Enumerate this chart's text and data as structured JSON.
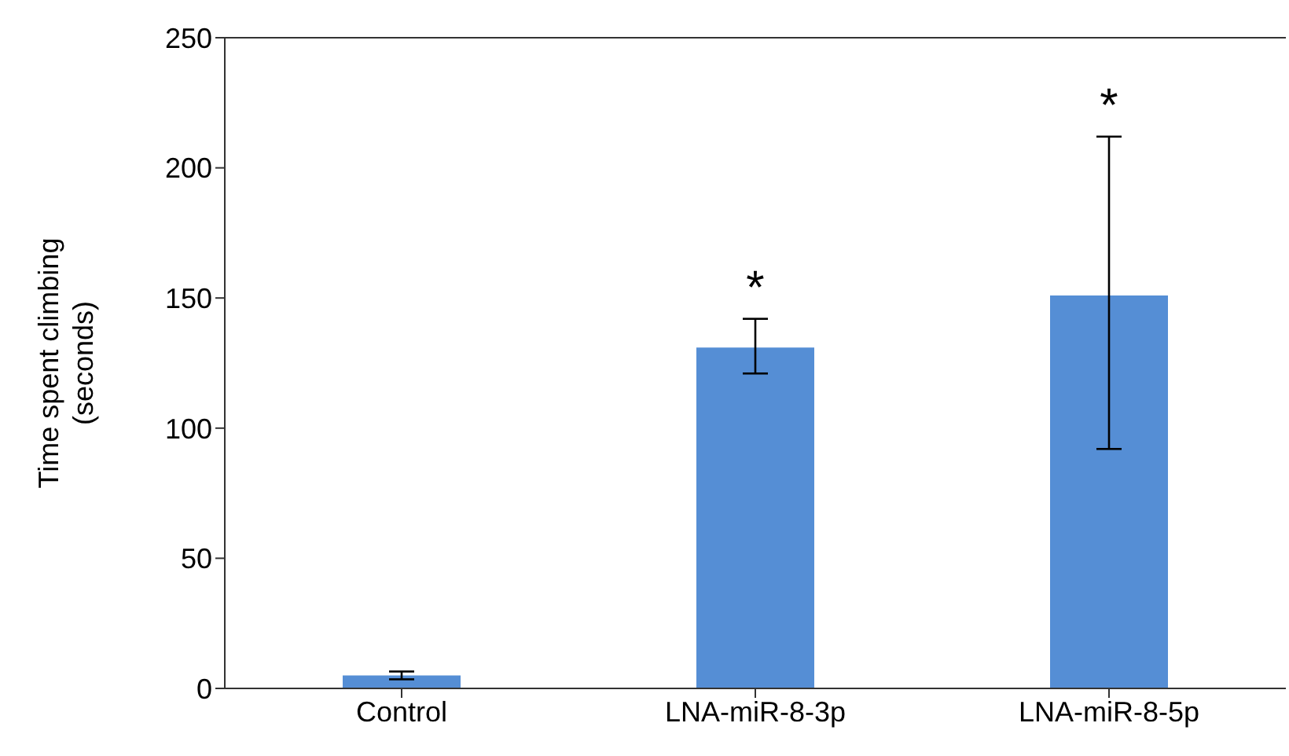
{
  "chart_data": {
    "type": "bar",
    "ylabel": "Time spent climbing\n(seconds)",
    "categories": [
      "Control",
      "LNA-miR-8-3p",
      "LNA-miR-8-5p"
    ],
    "values": [
      5,
      131,
      151
    ],
    "color": "#558ed5",
    "errors": [
      1.5,
      [
        121,
        142
      ],
      [
        92,
        212
      ]
    ],
    "ylim": [
      0,
      250
    ],
    "yticks": [
      0,
      50,
      100,
      150,
      200,
      250
    ],
    "grid": false,
    "annotations": [
      "*",
      "*"
    ]
  }
}
